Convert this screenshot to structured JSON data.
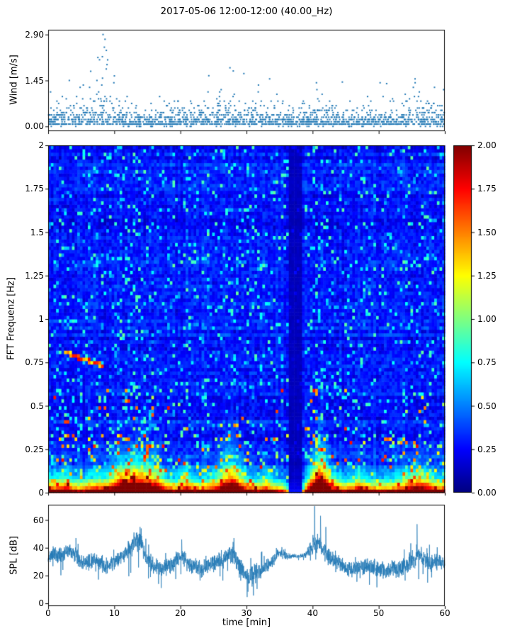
{
  "title": "2017-05-06 12:00-12:00 (40.00_Hz)",
  "x_axis": {
    "label": "time [min]",
    "lim": [
      0,
      60
    ],
    "tick_values": [
      0,
      10,
      20,
      30,
      40,
      50,
      60
    ],
    "tick_labels": [
      "0",
      "10",
      "20",
      "30",
      "40",
      "50",
      "60"
    ]
  },
  "chart_data": [
    {
      "type": "scatter",
      "name": "wind-speed",
      "ylabel": "Wind [m/s]",
      "ylim": [
        0,
        2.9
      ],
      "ytick_values": [
        0,
        1.45,
        2.9
      ],
      "ytick_labels": [
        "0.00",
        "1.45",
        "2.90"
      ],
      "marker_color": "#1f77b4",
      "point_count": 1900,
      "quantize_step": 0.0725,
      "gust_envelope": [
        [
          0,
          0.5
        ],
        [
          3,
          0.55
        ],
        [
          5,
          0.6
        ],
        [
          7,
          0.85
        ],
        [
          8,
          1.0
        ],
        [
          9,
          0.95
        ],
        [
          10,
          0.75
        ],
        [
          11,
          0.55
        ],
        [
          12,
          0.5
        ],
        [
          14,
          0.45
        ],
        [
          16,
          0.4
        ],
        [
          18,
          0.5
        ],
        [
          20,
          0.55
        ],
        [
          22,
          0.55
        ],
        [
          24,
          0.6
        ],
        [
          26,
          0.65
        ],
        [
          27,
          0.7
        ],
        [
          28,
          0.65
        ],
        [
          30,
          0.6
        ],
        [
          32,
          0.55
        ],
        [
          34,
          0.5
        ],
        [
          36,
          0.4
        ],
        [
          38,
          0.45
        ],
        [
          40,
          0.55
        ],
        [
          42,
          0.6
        ],
        [
          44,
          0.55
        ],
        [
          46,
          0.5
        ],
        [
          48,
          0.55
        ],
        [
          50,
          0.6
        ],
        [
          52,
          0.6
        ],
        [
          54,
          0.6
        ],
        [
          55,
          0.65
        ],
        [
          56,
          0.65
        ],
        [
          58,
          0.6
        ],
        [
          60,
          0.55
        ]
      ],
      "peak_points": [
        [
          8.3,
          2.9
        ],
        [
          8.6,
          2.75
        ],
        [
          8.5,
          2.5
        ],
        [
          8.8,
          2.4
        ],
        [
          8.2,
          2.2
        ],
        [
          9.0,
          2.1
        ],
        [
          8.9,
          1.95
        ],
        [
          27.5,
          1.85
        ],
        [
          28.0,
          1.75
        ],
        [
          24.3,
          1.6
        ],
        [
          33.5,
          1.5
        ],
        [
          55.5,
          1.5
        ],
        [
          3.2,
          1.45
        ],
        [
          44.5,
          1.4
        ],
        [
          51.2,
          1.35
        ]
      ]
    },
    {
      "type": "heatmap",
      "name": "fft-spectrogram",
      "ylabel": "FFT Frequenz [Hz]",
      "ylim": [
        0,
        2
      ],
      "ytick_values": [
        0,
        0.25,
        0.5,
        0.75,
        1,
        1.25,
        1.5,
        1.75,
        2
      ],
      "ytick_labels": [
        "0",
        "0.25",
        "0.5",
        "0.75",
        "1",
        "1.25",
        "1.5",
        "1.75",
        "2"
      ],
      "colormap": "jet",
      "clim": [
        0,
        2
      ],
      "colorbar_tick_values": [
        0,
        0.25,
        0.5,
        0.75,
        1,
        1.25,
        1.5,
        1.75,
        2
      ],
      "colorbar_tick_labels": [
        "0.00",
        "0.25",
        "0.50",
        "0.75",
        "1.00",
        "1.25",
        "1.50",
        "1.75",
        "2.00"
      ],
      "grid": {
        "cols": 150,
        "rows": 100
      },
      "activity_envelope": [
        [
          0,
          0.6
        ],
        [
          1,
          0.55
        ],
        [
          2,
          0.6
        ],
        [
          3,
          0.65
        ],
        [
          4,
          0.5
        ],
        [
          5,
          0.5
        ],
        [
          6,
          0.55
        ],
        [
          7,
          0.6
        ],
        [
          8,
          0.6
        ],
        [
          9,
          0.65
        ],
        [
          10,
          0.75
        ],
        [
          11,
          0.85
        ],
        [
          12,
          0.85
        ],
        [
          13,
          0.9
        ],
        [
          14,
          0.9
        ],
        [
          15,
          0.85
        ],
        [
          16,
          0.8
        ],
        [
          17,
          0.7
        ],
        [
          18,
          0.55
        ],
        [
          19,
          0.5
        ],
        [
          20,
          0.6
        ],
        [
          21,
          0.65
        ],
        [
          22,
          0.55
        ],
        [
          23,
          0.5
        ],
        [
          24,
          0.55
        ],
        [
          25,
          0.6
        ],
        [
          26,
          0.7
        ],
        [
          27,
          0.85
        ],
        [
          28,
          0.9
        ],
        [
          29,
          0.75
        ],
        [
          30,
          0.6
        ],
        [
          31,
          0.5
        ],
        [
          32,
          0.5
        ],
        [
          33,
          0.6
        ],
        [
          34,
          0.5
        ],
        [
          35,
          0.45
        ],
        [
          36,
          0.35
        ],
        [
          36.6,
          0.15
        ],
        [
          38.4,
          0.15
        ],
        [
          39,
          0.5
        ],
        [
          40,
          0.85
        ],
        [
          41,
          1.0
        ],
        [
          42,
          0.9
        ],
        [
          43,
          0.65
        ],
        [
          44,
          0.55
        ],
        [
          45,
          0.5
        ],
        [
          46,
          0.55
        ],
        [
          47,
          0.65
        ],
        [
          48,
          0.55
        ],
        [
          49,
          0.5
        ],
        [
          50,
          0.5
        ],
        [
          51,
          0.5
        ],
        [
          52,
          0.5
        ],
        [
          53,
          0.55
        ],
        [
          54,
          0.6
        ],
        [
          55,
          0.7
        ],
        [
          56,
          0.75
        ],
        [
          57,
          0.7
        ],
        [
          58,
          0.6
        ],
        [
          59,
          0.55
        ],
        [
          60,
          0.55
        ]
      ],
      "quiet_band_min": [
        36.6,
        38.4
      ],
      "tonal_streak": {
        "t0": 2.5,
        "t1": 8.5,
        "f0": 0.81,
        "f1": 0.73
      }
    },
    {
      "type": "line",
      "name": "spl",
      "ylabel": "SPL [dB]",
      "ylim": [
        0,
        70
      ],
      "ytick_values": [
        0,
        20,
        40,
        60
      ],
      "ytick_labels": [
        "0",
        "20",
        "40",
        "60"
      ],
      "line_color": "#1f77b4",
      "trend": [
        [
          0,
          33
        ],
        [
          1,
          36
        ],
        [
          2,
          34
        ],
        [
          3,
          37
        ],
        [
          4,
          35
        ],
        [
          5,
          30
        ],
        [
          6,
          29
        ],
        [
          7,
          31
        ],
        [
          9,
          27
        ],
        [
          10,
          29
        ],
        [
          11,
          33
        ],
        [
          12,
          37
        ],
        [
          13,
          43
        ],
        [
          14,
          44
        ],
        [
          15,
          32
        ],
        [
          16,
          27
        ],
        [
          17,
          25
        ],
        [
          18,
          26
        ],
        [
          19,
          29
        ],
        [
          20,
          34
        ],
        [
          21,
          30
        ],
        [
          22,
          26
        ],
        [
          23,
          25
        ],
        [
          24,
          27
        ],
        [
          25,
          29
        ],
        [
          26,
          31
        ],
        [
          27,
          34
        ],
        [
          28,
          37
        ],
        [
          29,
          25
        ],
        [
          30,
          19
        ],
        [
          31,
          20
        ],
        [
          32,
          23
        ],
        [
          33,
          26
        ],
        [
          34,
          30
        ],
        [
          35,
          37
        ],
        [
          36,
          34
        ],
        [
          37,
          34
        ],
        [
          38,
          34
        ],
        [
          39,
          35
        ],
        [
          40,
          41
        ],
        [
          41,
          43
        ],
        [
          42,
          35
        ],
        [
          43,
          31
        ],
        [
          44,
          29
        ],
        [
          45,
          26
        ],
        [
          46,
          24
        ],
        [
          47,
          26
        ],
        [
          48,
          27
        ],
        [
          49,
          25
        ],
        [
          50,
          24
        ],
        [
          51,
          23
        ],
        [
          52,
          25
        ],
        [
          53,
          24
        ],
        [
          54,
          27
        ],
        [
          55,
          30
        ],
        [
          56,
          36
        ],
        [
          57,
          31
        ],
        [
          58,
          28
        ],
        [
          59,
          30
        ],
        [
          60,
          31
        ]
      ],
      "noise_amp": [
        [
          0,
          5
        ],
        [
          10,
          5
        ],
        [
          12,
          6
        ],
        [
          14,
          7
        ],
        [
          15,
          5
        ],
        [
          20,
          5
        ],
        [
          27,
          6
        ],
        [
          29,
          6
        ],
        [
          31,
          6
        ],
        [
          33,
          5
        ],
        [
          35.5,
          3
        ],
        [
          36.5,
          1.5
        ],
        [
          38.5,
          1.5
        ],
        [
          39.5,
          4
        ],
        [
          40,
          6
        ],
        [
          43,
          5
        ],
        [
          50,
          5
        ],
        [
          54,
          6
        ],
        [
          56,
          6
        ],
        [
          58,
          5
        ],
        [
          60,
          5
        ]
      ],
      "spikes": [
        [
          4.2,
          47
        ],
        [
          13.4,
          51
        ],
        [
          13.9,
          55
        ],
        [
          20.2,
          46
        ],
        [
          28.1,
          47
        ],
        [
          40.3,
          70
        ],
        [
          41.2,
          63
        ],
        [
          42.0,
          55
        ],
        [
          55.8,
          57
        ]
      ]
    }
  ]
}
